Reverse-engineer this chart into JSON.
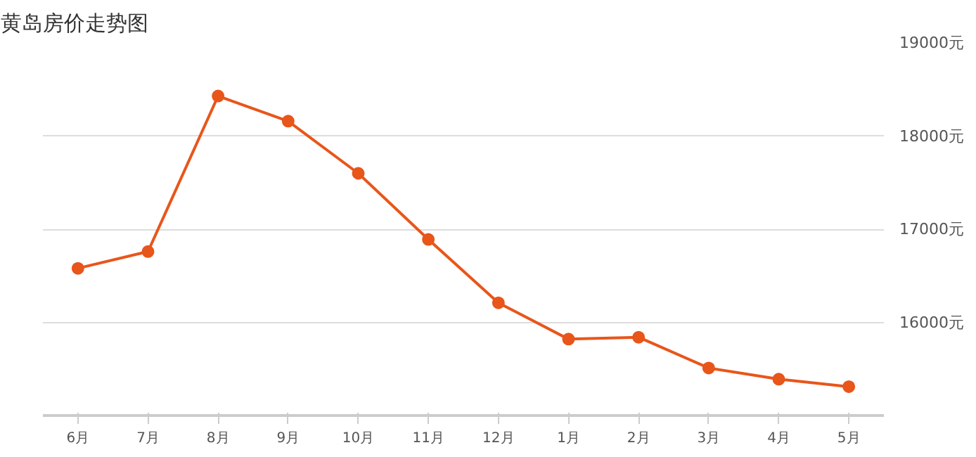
{
  "chart_data": {
    "type": "line",
    "title": "黄岛房价走势图",
    "categories": [
      "6月",
      "7月",
      "8月",
      "9月",
      "10月",
      "11月",
      "12月",
      "1月",
      "2月",
      "3月",
      "4月",
      "5月"
    ],
    "series": [
      {
        "color": "#e8561a",
        "values": [
          16580,
          16760,
          18430,
          18160,
          17600,
          16890,
          16210,
          15820,
          15840,
          15510,
          15390,
          15310
        ]
      }
    ],
    "ylim": [
      15000,
      19000
    ],
    "yticks": [
      {
        "value": 16000,
        "label": "16000元"
      },
      {
        "value": 17000,
        "label": "17000元"
      },
      {
        "value": 18000,
        "label": "18000元"
      },
      {
        "value": 19000,
        "label": "19000元"
      }
    ],
    "grid": "y",
    "marker": "circle",
    "line_style": "solid"
  }
}
